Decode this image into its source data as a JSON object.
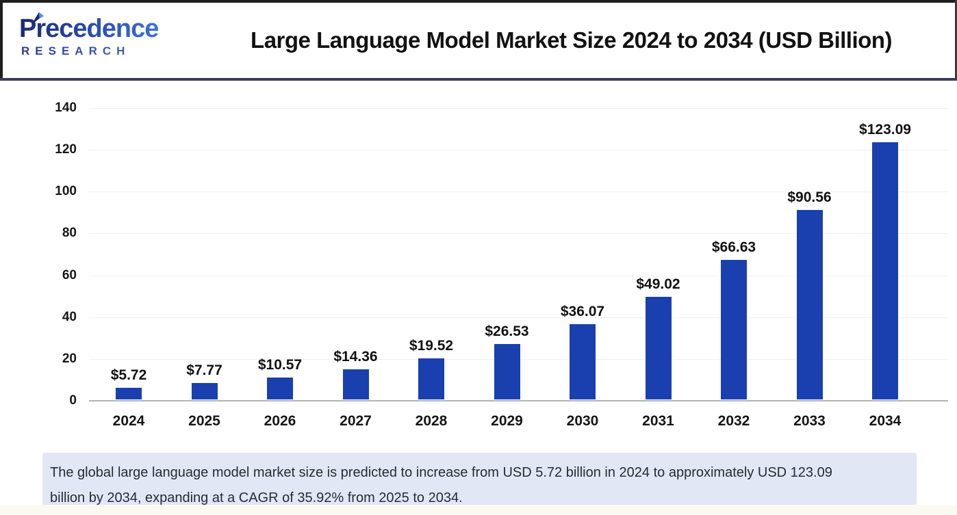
{
  "header": {
    "logo": {
      "line1": "Precedence",
      "line2": "RESEARCH"
    },
    "title": "Large Language Model Market Size 2024 to 2034 (USD Billion)"
  },
  "chart_data": {
    "type": "bar",
    "title": "Large Language Model Market Size 2024 to 2034 (USD Billion)",
    "categories": [
      "2024",
      "2025",
      "2026",
      "2027",
      "2028",
      "2029",
      "2030",
      "2031",
      "2032",
      "2033",
      "2034"
    ],
    "values": [
      5.72,
      7.77,
      10.57,
      14.36,
      19.52,
      26.53,
      36.07,
      49.02,
      66.63,
      90.56,
      123.09
    ],
    "value_labels": [
      "$5.72",
      "$7.77",
      "$10.57",
      "$14.36",
      "$19.52",
      "$26.53",
      "$36.07",
      "$49.02",
      "$66.63",
      "$90.56",
      "$123.09"
    ],
    "xlabel": "",
    "ylabel": "",
    "ylim": [
      0,
      140
    ],
    "yticks": [
      0,
      20,
      40,
      60,
      80,
      100,
      120,
      140
    ],
    "grid": true,
    "legend": null,
    "bar_color": "#1a3fae"
  },
  "footer": {
    "note": "The global large language model market size is predicted to increase from USD 5.72 billion in 2024 to approximately USD 123.09 billion by 2034, expanding at a CAGR of 35.92% from 2025 to 2034."
  },
  "colors": {
    "bar": "#1a3fae",
    "logo_dark": "#1c2a72",
    "logo_light": "#3f7de0",
    "divider": "#3d3d58",
    "footer_bg": "#e1e7f4",
    "grid": "#f0f0f0",
    "axis": "#b3b3b3"
  }
}
